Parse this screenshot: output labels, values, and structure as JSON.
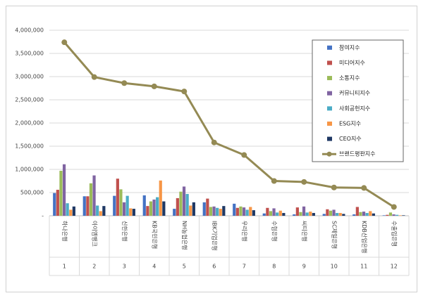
{
  "chart_data": {
    "type": "bar",
    "categories": [
      "하나은행",
      "아이엠뱅크",
      "신한은행",
      "KB국민은행",
      "NH농협은행",
      "IBK기업은행",
      "우리은행",
      "수협은행",
      "씨티은행",
      "SC제일은행",
      "KDB산업은행",
      "수출입은행"
    ],
    "ranks": [
      1,
      2,
      3,
      4,
      5,
      6,
      7,
      8,
      9,
      10,
      11,
      12
    ],
    "ylim": [
      0,
      4000000
    ],
    "yticks": [
      {
        "value": 0,
        "label": "-"
      },
      {
        "value": 500000,
        "label": "500,000"
      },
      {
        "value": 1000000,
        "label": "1,000,000"
      },
      {
        "value": 1500000,
        "label": "1,500,000"
      },
      {
        "value": 2000000,
        "label": "2,000,000"
      },
      {
        "value": 2500000,
        "label": "2,500,000"
      },
      {
        "value": 3000000,
        "label": "3,000,000"
      },
      {
        "value": 3500000,
        "label": "3,500,000"
      },
      {
        "value": 4000000,
        "label": "4,000,000"
      }
    ],
    "grid": true,
    "legend": "upper right",
    "series": [
      {
        "name": "참여지수",
        "color": "#4472c4",
        "values": [
          490000,
          420000,
          430000,
          440000,
          150000,
          290000,
          260000,
          50000,
          30000,
          40000,
          30000,
          10000
        ]
      },
      {
        "name": "미디어지수",
        "color": "#c0504d",
        "values": [
          560000,
          420000,
          800000,
          210000,
          380000,
          370000,
          170000,
          170000,
          180000,
          140000,
          190000,
          20000
        ]
      },
      {
        "name": "소통지수",
        "color": "#9bbb59",
        "values": [
          970000,
          700000,
          570000,
          310000,
          520000,
          190000,
          200000,
          100000,
          80000,
          110000,
          80000,
          70000
        ]
      },
      {
        "name": "커뮤니티지수",
        "color": "#8064a2",
        "values": [
          1110000,
          870000,
          290000,
          350000,
          630000,
          200000,
          180000,
          160000,
          200000,
          130000,
          90000,
          30000
        ]
      },
      {
        "name": "사회공헌지수",
        "color": "#4bacc6",
        "values": [
          270000,
          220000,
          430000,
          400000,
          470000,
          170000,
          130000,
          70000,
          70000,
          60000,
          60000,
          20000
        ]
      },
      {
        "name": "ESG지수",
        "color": "#f79646",
        "values": [
          130000,
          100000,
          160000,
          760000,
          220000,
          150000,
          190000,
          110000,
          90000,
          60000,
          100000,
          10000
        ]
      },
      {
        "name": "CEO지수",
        "color": "#1f3864",
        "values": [
          200000,
          210000,
          150000,
          310000,
          290000,
          210000,
          120000,
          60000,
          60000,
          40000,
          50000,
          10000
        ]
      },
      {
        "name": "브랜드평판지수",
        "color": "#948a54",
        "type": "line",
        "values": [
          3740000,
          2990000,
          2860000,
          2790000,
          2680000,
          1580000,
          1310000,
          750000,
          730000,
          610000,
          600000,
          190000
        ]
      }
    ]
  }
}
